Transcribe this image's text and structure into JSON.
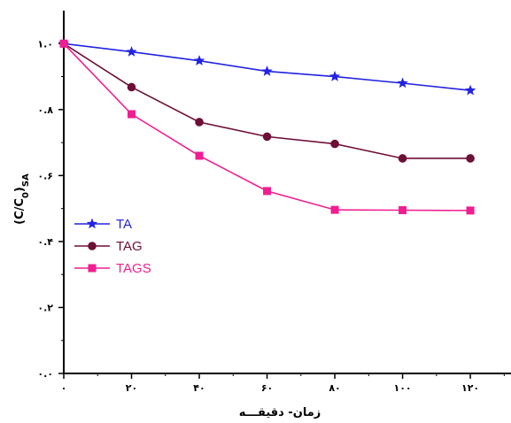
{
  "chart_data": {
    "type": "line",
    "title": "",
    "xlabel": "زمان- دقیقـــه",
    "ylabel_main": "(C/C",
    "ylabel_sub0": "0",
    "ylabel_close": ")",
    "ylabel_subSA": "SA",
    "x": [
      0,
      20,
      40,
      60,
      80,
      100,
      120
    ],
    "x_tick_labels": [
      "۰",
      "۲۰",
      "۴۰",
      "۶۰",
      "۸۰",
      "۱۰۰",
      "۱۲۰"
    ],
    "y_ticks": [
      0.0,
      0.2,
      0.4,
      0.6,
      0.8,
      1.0
    ],
    "y_tick_labels": [
      "۰.۰",
      "۰.۲",
      "۰.۴",
      "۰.۶",
      "۰.۸",
      "۱.۰"
    ],
    "xlim": [
      0,
      132
    ],
    "ylim": [
      0.0,
      1.1
    ],
    "grid": false,
    "legend_position": "lower-left",
    "series": [
      {
        "name": "TA",
        "color": "#2323e0",
        "marker": "star",
        "values": [
          1.0,
          0.975,
          0.948,
          0.916,
          0.9,
          0.88,
          0.858
        ]
      },
      {
        "name": "TAG",
        "color": "#6e0f37",
        "marker": "circle",
        "values": [
          1.0,
          0.868,
          0.762,
          0.718,
          0.696,
          0.652,
          0.652
        ]
      },
      {
        "name": "TAGS",
        "color": "#f01e90",
        "marker": "square",
        "values": [
          1.0,
          0.786,
          0.66,
          0.553,
          0.496,
          0.495,
          0.494
        ]
      }
    ]
  }
}
